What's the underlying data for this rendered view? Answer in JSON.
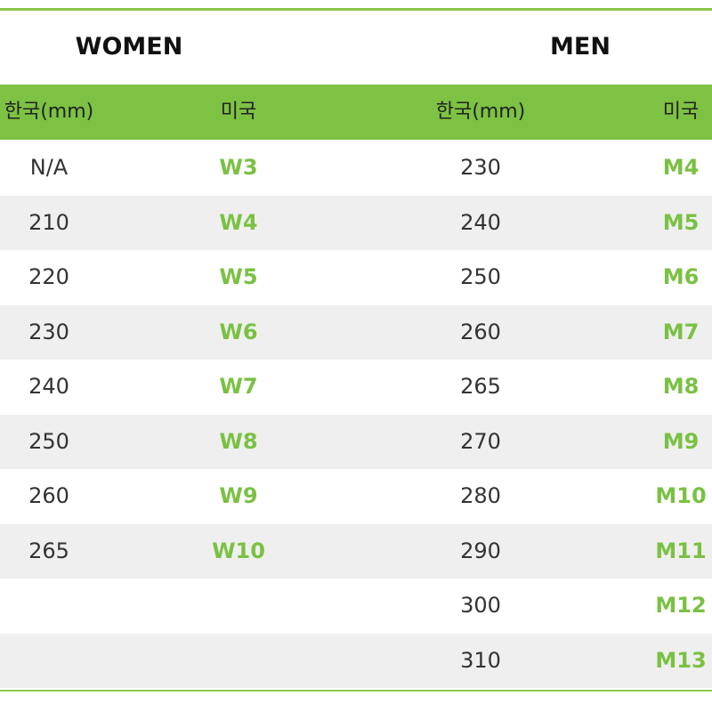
{
  "women": {
    "title": "WOMEN",
    "columns": [
      "한국(mm)",
      "미국"
    ],
    "rows": [
      [
        "N/A",
        "W3"
      ],
      [
        "210",
        "W4"
      ],
      [
        "220",
        "W5"
      ],
      [
        "230",
        "W6"
      ],
      [
        "240",
        "W7"
      ],
      [
        "250",
        "W8"
      ],
      [
        "260",
        "W9"
      ],
      [
        "265",
        "W10"
      ]
    ]
  },
  "men": {
    "title": "MEN",
    "columns": [
      "한국(mm)",
      "미국"
    ],
    "rows": [
      [
        "230",
        "M4"
      ],
      [
        "240",
        "M5"
      ],
      [
        "250",
        "M6"
      ],
      [
        "260",
        "M7"
      ],
      [
        "265",
        "M8"
      ],
      [
        "270",
        "M9"
      ],
      [
        "280",
        "M10"
      ],
      [
        "290",
        "M11"
      ],
      [
        "300",
        "M12"
      ],
      [
        "310",
        "M13"
      ]
    ]
  }
}
